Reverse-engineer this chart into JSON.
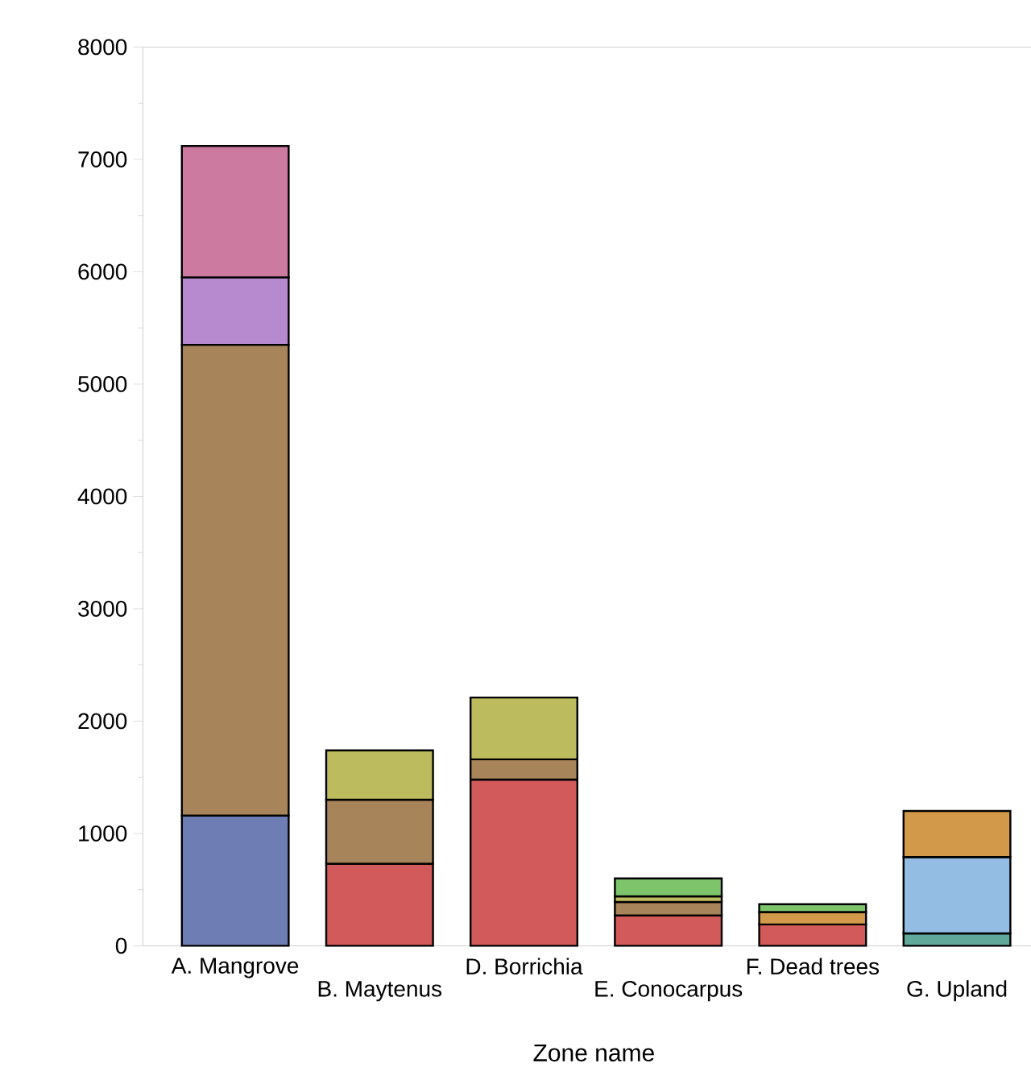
{
  "chart_data": {
    "type": "bar",
    "stacked": true,
    "xlabel": "Zone name",
    "categories": [
      "A. Mangrove",
      "B. Maytenus",
      "D. Borrichia",
      "E. Conocarpus",
      "F. Dead trees",
      "G. Upland"
    ],
    "ylim": [
      0,
      8000
    ],
    "yticks": [
      0,
      1000,
      2000,
      3000,
      4000,
      5000,
      6000,
      7000,
      8000
    ],
    "grid": false,
    "series": [
      {
        "color": "#6f7db5",
        "values": [
          1160,
          null,
          null,
          null,
          null,
          null
        ]
      },
      {
        "color": "#5fa89a",
        "values": [
          null,
          null,
          null,
          null,
          null,
          110
        ]
      },
      {
        "color": "#d35a5a",
        "values": [
          null,
          730,
          1480,
          270,
          190,
          null
        ]
      },
      {
        "color": "#a8845a",
        "values": [
          4190,
          570,
          180,
          120,
          null,
          null
        ]
      },
      {
        "color": "#93bde3",
        "values": [
          null,
          null,
          null,
          null,
          null,
          680
        ]
      },
      {
        "color": "#b78acf",
        "values": [
          600,
          null,
          null,
          null,
          null,
          null
        ]
      },
      {
        "color": "#bcbc5e",
        "values": [
          null,
          440,
          550,
          50,
          null,
          null
        ]
      },
      {
        "color": "#d3994a",
        "values": [
          null,
          null,
          null,
          null,
          110,
          410
        ]
      },
      {
        "color": "#7dc46a",
        "values": [
          null,
          null,
          null,
          160,
          70,
          null
        ]
      },
      {
        "color": "#cc7a9f",
        "values": [
          1170,
          null,
          null,
          null,
          null,
          null
        ]
      }
    ]
  }
}
